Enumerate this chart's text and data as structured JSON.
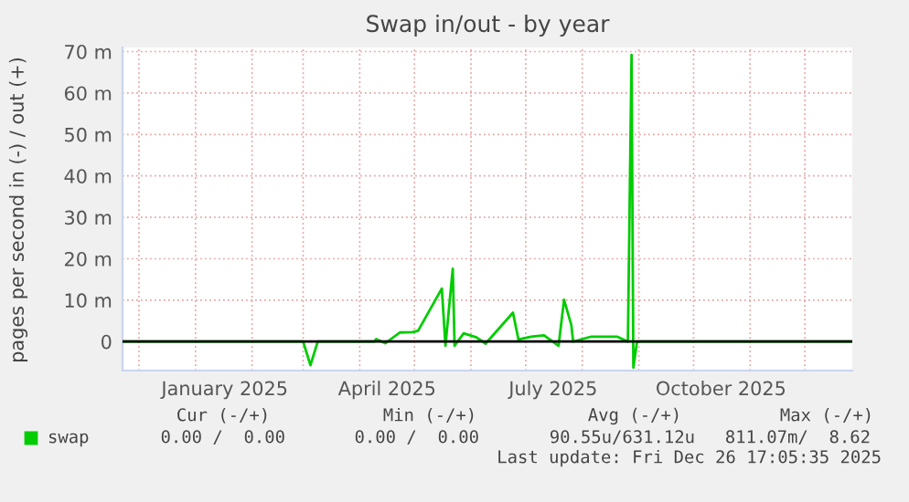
{
  "chart_data": {
    "type": "line",
    "title": "Swap in/out - by year",
    "ylabel": "pages per second in (-) / out (+)",
    "x": [
      "2024-11-22",
      "2025-03-01",
      "2025-03-05",
      "2025-03-09",
      "2025-04-09",
      "2025-04-10",
      "2025-04-15",
      "2025-04-23",
      "2025-04-30",
      "2025-05-03",
      "2025-05-16",
      "2025-05-18",
      "2025-05-22",
      "2025-05-23",
      "2025-05-28",
      "2025-06-04",
      "2025-06-09",
      "2025-06-24",
      "2025-06-27",
      "2025-07-04",
      "2025-07-11",
      "2025-07-19",
      "2025-07-22",
      "2025-07-26",
      "2025-07-27",
      "2025-08-06",
      "2025-08-13",
      "2025-08-20",
      "2025-08-26",
      "2025-08-28",
      "2025-08-29",
      "2025-08-31",
      "2025-12-26"
    ],
    "series": [
      {
        "name": "swap",
        "color": "#00cc00",
        "values": [
          0,
          0,
          -5.7,
          0,
          0,
          0.6,
          -0.4,
          2.2,
          2.3,
          2.6,
          12.8,
          -1,
          17.6,
          -1,
          2.0,
          1,
          -0.5,
          7.0,
          0.5,
          1.2,
          1.5,
          -1,
          10.1,
          4,
          0,
          1.2,
          1.2,
          1.2,
          0,
          69.2,
          -6.3,
          0,
          0
        ]
      }
    ],
    "xlim": [
      "2024-11-22",
      "2025-12-27"
    ],
    "xticks": [
      {
        "value": "2024-12-01",
        "label": null
      },
      {
        "value": "2025-01-01",
        "label": null
      },
      {
        "value": "2025-01-17",
        "label": "January 2025"
      },
      {
        "value": "2025-02-01",
        "label": null
      },
      {
        "value": "2025-03-01",
        "label": null
      },
      {
        "value": "2025-04-01",
        "label": null
      },
      {
        "value": "2025-04-16",
        "label": "April 2025"
      },
      {
        "value": "2025-05-01",
        "label": null
      },
      {
        "value": "2025-06-01",
        "label": null
      },
      {
        "value": "2025-07-01",
        "label": null
      },
      {
        "value": "2025-07-16",
        "label": "July 2025"
      },
      {
        "value": "2025-08-01",
        "label": null
      },
      {
        "value": "2025-09-01",
        "label": null
      },
      {
        "value": "2025-10-01",
        "label": null
      },
      {
        "value": "2025-10-16",
        "label": "October 2025"
      },
      {
        "value": "2025-11-01",
        "label": null
      },
      {
        "value": "2025-12-01",
        "label": null
      }
    ],
    "ylim": [
      -7,
      71
    ],
    "yticks": [
      0,
      {
        "value": 10,
        "label": "10 m"
      },
      {
        "value": 20,
        "label": "20 m"
      },
      {
        "value": 30,
        "label": "30 m"
      },
      {
        "value": 40,
        "label": "40 m"
      },
      {
        "value": 50,
        "label": "50 m"
      },
      {
        "value": 60,
        "label": "60 m"
      },
      {
        "value": 70,
        "label": "70 m"
      }
    ],
    "ref_lines": [
      {
        "axis": "y",
        "value": 0,
        "label": null,
        "color": "#000000"
      }
    ],
    "grid": true,
    "legend": "bottom",
    "marker": "none",
    "line_style": "solid",
    "annotations": [
      "Cur (-/+)",
      "Min (-/+)",
      "Avg (-/+)",
      "Max (-/+)",
      "0.00 /  0.00",
      "0.00 /  0.00",
      "90.55u/631.12u",
      "811.07m/  8.62",
      "Last update: Fri Dec 26 17:05:35 2025"
    ]
  }
}
